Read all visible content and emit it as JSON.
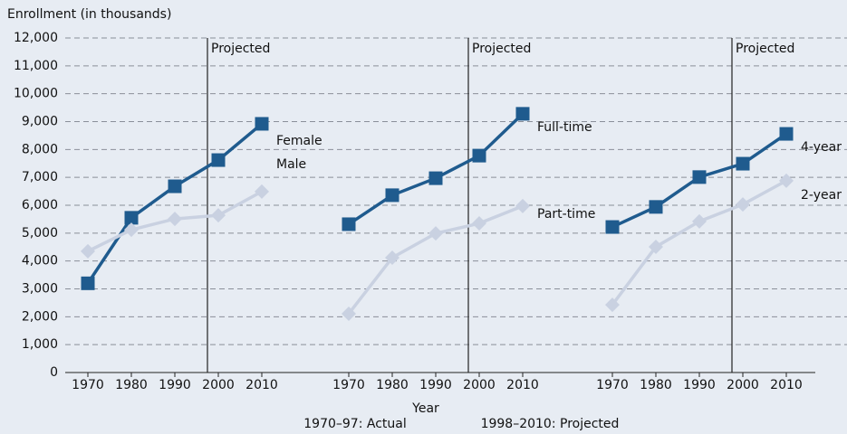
{
  "chart_data": [
    {
      "type": "line",
      "y_label": "Enrollment (in thousands)",
      "x": [
        1970,
        1980,
        1990,
        2000,
        2010
      ],
      "xlim": [
        1965,
        2015
      ],
      "xticks": [
        1970,
        1980,
        1990,
        2000,
        2010
      ],
      "ylim": [
        0,
        12000
      ],
      "yticks": [
        0,
        {
          "value": 1000,
          "label": "1,000"
        },
        {
          "value": 2000,
          "label": "2,000"
        },
        {
          "value": 3000,
          "label": "3,000"
        },
        {
          "value": 4000,
          "label": "4,000"
        },
        {
          "value": 5000,
          "label": "5,000"
        },
        {
          "value": 6000,
          "label": "6,000"
        },
        {
          "value": 7000,
          "label": "7,000"
        },
        {
          "value": 8000,
          "label": "8,000"
        },
        {
          "value": 9000,
          "label": "9,000"
        },
        {
          "value": 10000,
          "label": "10,000"
        },
        {
          "value": 11000,
          "label": "11,000"
        },
        {
          "value": 12000,
          "label": "12,000"
        }
      ],
      "grid": true,
      "divider": {
        "x": 1997.5,
        "label": "Projected"
      },
      "series": [
        {
          "name": "Female",
          "color": "#1f5b8e",
          "marker": "square",
          "values": [
            3200,
            5550,
            6680,
            7620,
            8920
          ]
        },
        {
          "name": "Male",
          "color": "#c9d1e1",
          "marker": "diamond",
          "values": [
            4350,
            5120,
            5510,
            5640,
            6490
          ]
        }
      ]
    },
    {
      "type": "line",
      "x_label": "Year",
      "x": [
        1970,
        1980,
        1990,
        2000,
        2010
      ],
      "xlim": [
        1965,
        2015
      ],
      "xticks": [
        1970,
        1980,
        1990,
        2000,
        2010
      ],
      "ylim": [
        0,
        12000
      ],
      "divider": {
        "x": 1997.5,
        "label": "Projected"
      },
      "series": [
        {
          "name": "Full-time",
          "color": "#1f5b8e",
          "marker": "square",
          "values": [
            5320,
            6360,
            6970,
            7780,
            9280
          ]
        },
        {
          "name": "Part-time",
          "color": "#c9d1e1",
          "marker": "diamond",
          "values": [
            2110,
            4120,
            4990,
            5350,
            5970
          ]
        }
      ]
    },
    {
      "type": "line",
      "x": [
        1970,
        1980,
        1990,
        2000,
        2010
      ],
      "xlim": [
        1965,
        2015
      ],
      "xticks": [
        1970,
        1980,
        1990,
        2000,
        2010
      ],
      "ylim": [
        0,
        12000
      ],
      "divider": {
        "x": 1997.5,
        "label": "Projected"
      },
      "series": [
        {
          "name": "4-year",
          "color": "#1f5b8e",
          "marker": "square",
          "values": [
            5220,
            5940,
            7010,
            7490,
            8560
          ]
        },
        {
          "name": "2-year",
          "color": "#c9d1e1",
          "marker": "diamond",
          "values": [
            2430,
            4510,
            5420,
            6030,
            6880
          ]
        }
      ]
    }
  ],
  "notes": [
    "1970–97: Actual",
    "1998–2010: Projected"
  ]
}
